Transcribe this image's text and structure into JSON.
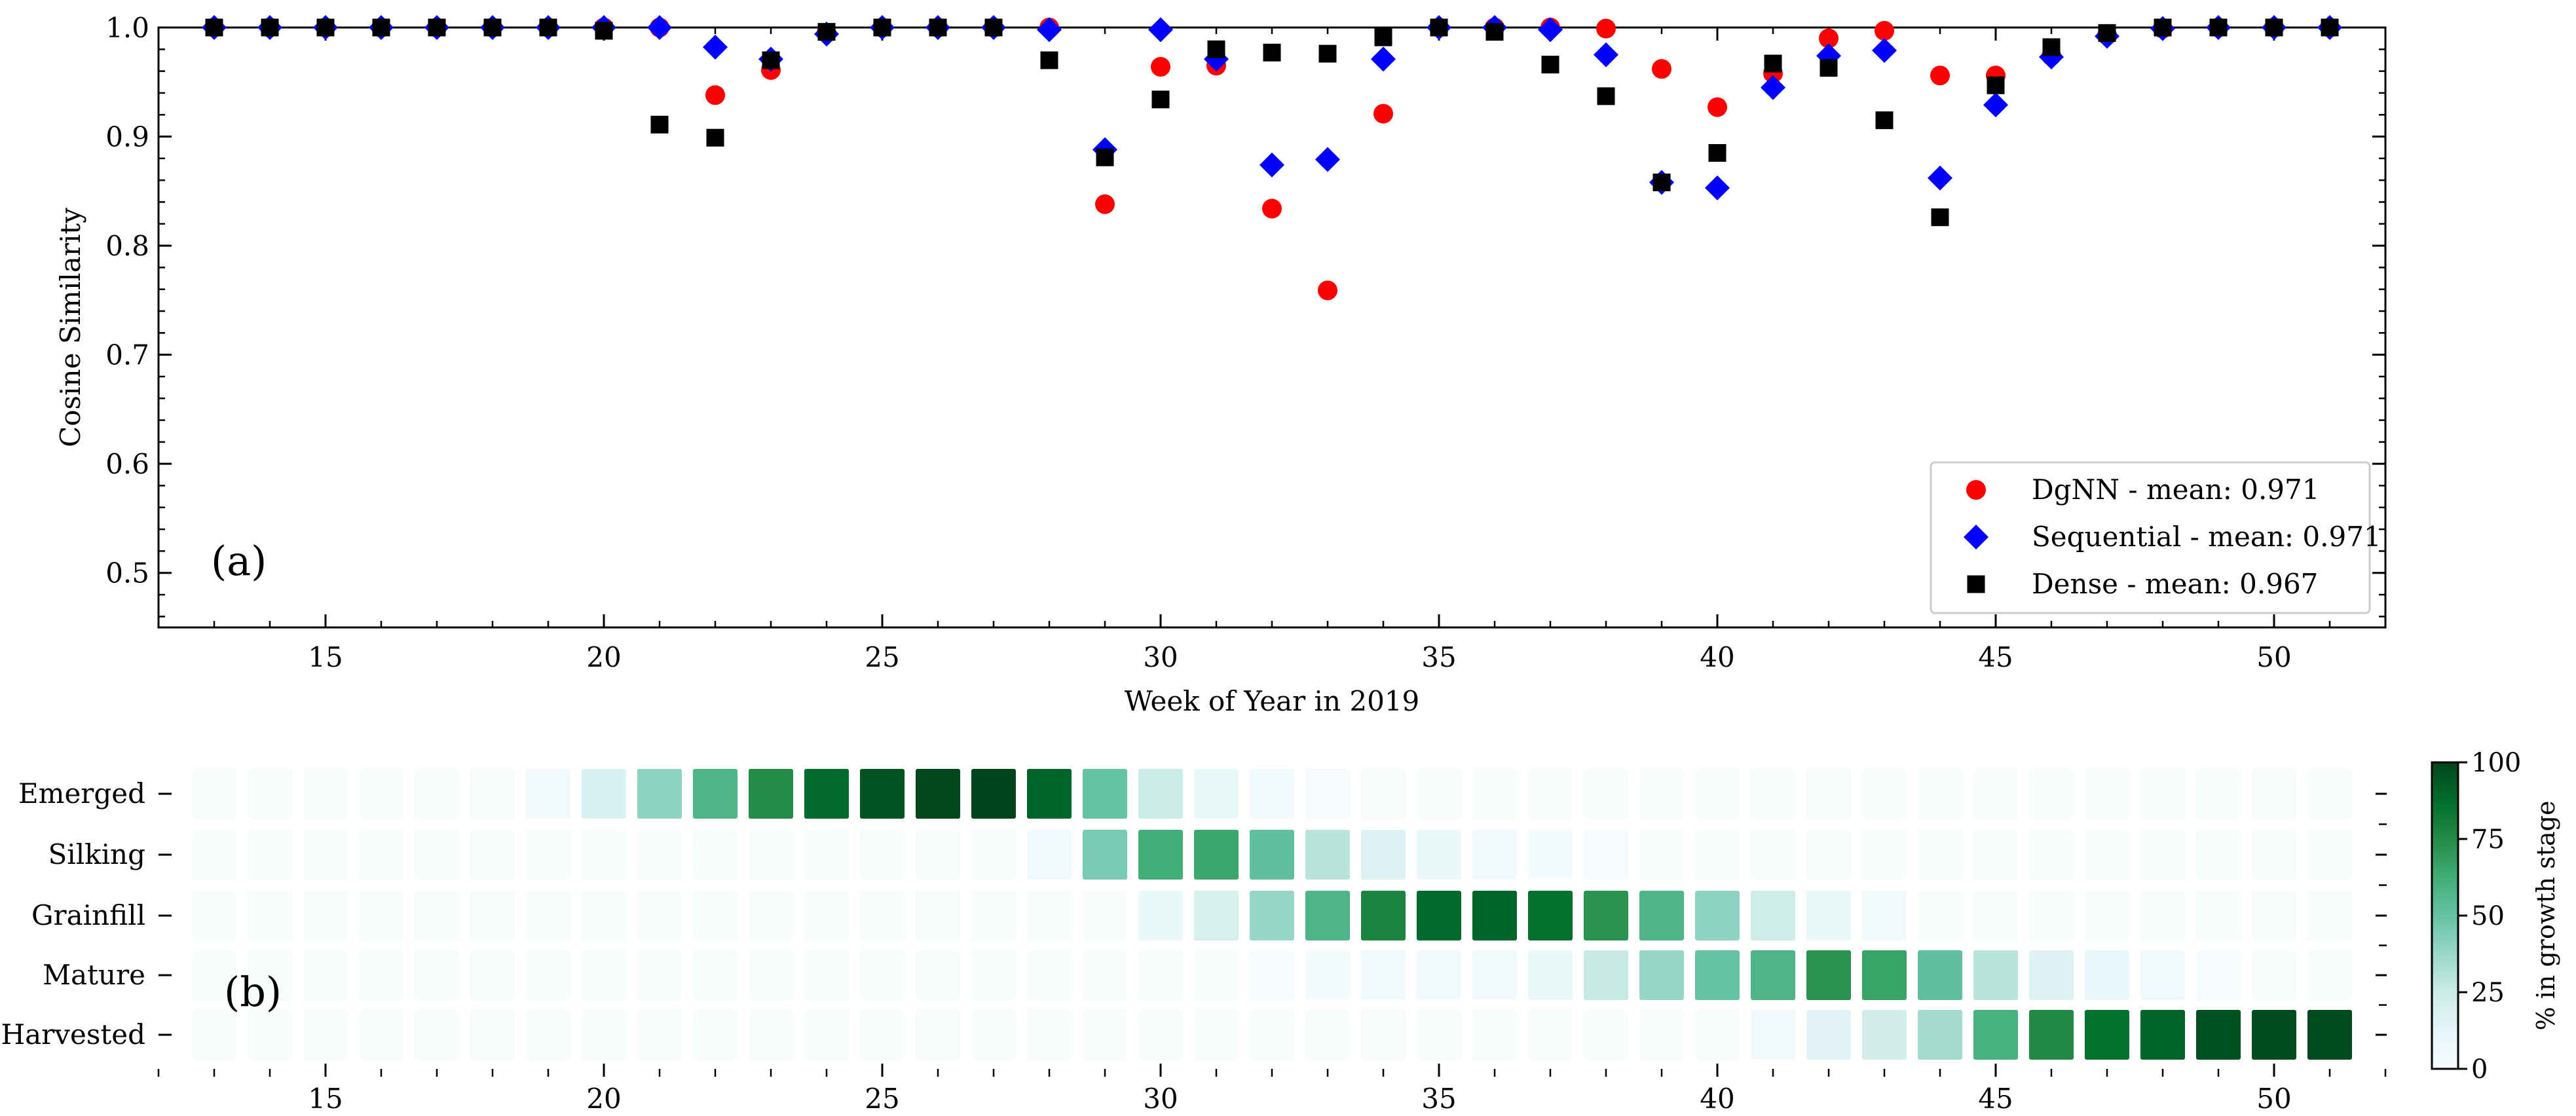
{
  "chart_data": [
    {
      "type": "scatter",
      "panel_label": "(a)",
      "xlabel": "Week of Year in 2019",
      "ylabel": "Cosine Similarity",
      "xlim": [
        12,
        52
      ],
      "ylim": [
        0.45,
        1.0
      ],
      "x_ticks": [
        15,
        20,
        25,
        30,
        35,
        40,
        45,
        50
      ],
      "y_ticks": [
        0.5,
        0.6,
        0.7,
        0.8,
        0.9,
        1.0
      ],
      "x_tick_labels": [
        "15",
        "20",
        "25",
        "30",
        "35",
        "40",
        "45",
        "50"
      ],
      "y_tick_labels": [
        "0.5",
        "0.6",
        "0.7",
        "0.8",
        "0.9",
        "1.0"
      ],
      "legend_position": "lower-right",
      "x": [
        13,
        14,
        15,
        16,
        17,
        18,
        19,
        20,
        21,
        22,
        23,
        24,
        25,
        26,
        27,
        28,
        29,
        30,
        31,
        32,
        33,
        34,
        35,
        36,
        37,
        38,
        39,
        40,
        41,
        42,
        43,
        44,
        45,
        46,
        47,
        48,
        49,
        50,
        51
      ],
      "series": [
        {
          "name": "DgNN",
          "legend_label": "DgNN - mean: 0.971",
          "marker": "circle",
          "color": "#ff0000",
          "values": [
            1.0,
            1.0,
            1.0,
            1.0,
            1.0,
            1.0,
            1.0,
            1.0,
            1.0,
            0.938,
            0.961,
            0.995,
            1.0,
            1.0,
            1.0,
            1.0,
            0.838,
            0.964,
            0.965,
            0.834,
            0.759,
            0.921,
            1.0,
            1.0,
            1.0,
            0.999,
            0.962,
            0.927,
            0.958,
            0.99,
            0.997,
            0.956,
            0.956,
            0.974,
            0.993,
            0.999,
            1.0,
            1.0,
            1.0
          ]
        },
        {
          "name": "Sequential",
          "legend_label": "Sequential - mean: 0.971",
          "marker": "diamond",
          "color": "#0000ff",
          "values": [
            1.0,
            1.0,
            1.0,
            1.0,
            1.0,
            1.0,
            1.0,
            1.0,
            1.0,
            0.982,
            0.971,
            0.994,
            1.0,
            1.0,
            1.0,
            0.998,
            0.888,
            0.998,
            0.971,
            0.874,
            0.879,
            0.971,
            1.0,
            1.0,
            0.998,
            0.975,
            0.858,
            0.853,
            0.945,
            0.974,
            0.979,
            0.862,
            0.929,
            0.973,
            0.992,
            0.999,
            1.0,
            1.0,
            1.0
          ]
        },
        {
          "name": "Dense",
          "legend_label": "Dense - mean: 0.967",
          "marker": "square",
          "color": "#000000",
          "values": [
            1.0,
            1.0,
            1.0,
            1.0,
            1.0,
            1.0,
            1.0,
            0.997,
            0.911,
            0.899,
            0.97,
            0.996,
            1.0,
            1.0,
            1.0,
            0.97,
            0.881,
            0.934,
            0.98,
            0.977,
            0.976,
            0.991,
            1.0,
            0.996,
            0.966,
            0.937,
            0.858,
            0.885,
            0.967,
            0.963,
            0.915,
            0.826,
            0.947,
            0.982,
            0.995,
            1.0,
            1.0,
            1.0,
            1.0
          ]
        }
      ]
    },
    {
      "type": "heatmap",
      "panel_label": "(b)",
      "colorbar_label": "% in growth stage",
      "colorbar_ticks": [
        0,
        25,
        50,
        75,
        100
      ],
      "colorbar_tick_labels": [
        "0",
        "25",
        "50",
        "75",
        "100"
      ],
      "colorbar_range": [
        0,
        100
      ],
      "x_ticks": [
        15,
        20,
        25,
        30,
        35,
        40,
        45,
        50
      ],
      "x_tick_labels": [
        "15",
        "20",
        "25",
        "30",
        "35",
        "40",
        "45",
        "50"
      ],
      "x": [
        13,
        14,
        15,
        16,
        17,
        18,
        19,
        20,
        21,
        22,
        23,
        24,
        25,
        26,
        27,
        28,
        29,
        30,
        31,
        32,
        33,
        34,
        35,
        36,
        37,
        38,
        39,
        40,
        41,
        42,
        43,
        44,
        45,
        46,
        47,
        48,
        49,
        50,
        51
      ],
      "rows": [
        "Emerged",
        "Silking",
        "Grainfill",
        "Mature",
        "Harvested"
      ],
      "values": [
        [
          0,
          0,
          0,
          0,
          0,
          0,
          3,
          18,
          40,
          58,
          75,
          88,
          95,
          99,
          100,
          90,
          50,
          25,
          8,
          4,
          1,
          0,
          0,
          0,
          0,
          0,
          0,
          0,
          0,
          0,
          0,
          0,
          0,
          0,
          0,
          0,
          0,
          0,
          0
        ],
        [
          0,
          0,
          0,
          0,
          0,
          0,
          0,
          0,
          0,
          0,
          0,
          0,
          0,
          0,
          0,
          5,
          45,
          62,
          65,
          52,
          30,
          17,
          8,
          4,
          2,
          1,
          0,
          0,
          0,
          0,
          0,
          0,
          0,
          0,
          0,
          0,
          0,
          0,
          0
        ],
        [
          0,
          0,
          0,
          0,
          0,
          0,
          0,
          0,
          0,
          0,
          0,
          0,
          0,
          0,
          0,
          0,
          0,
          8,
          20,
          38,
          58,
          78,
          88,
          90,
          86,
          72,
          58,
          40,
          24,
          8,
          3,
          0,
          0,
          0,
          0,
          0,
          0,
          0,
          0
        ],
        [
          0,
          0,
          0,
          0,
          0,
          0,
          0,
          0,
          0,
          0,
          0,
          0,
          0,
          0,
          0,
          0,
          0,
          0,
          0,
          1,
          2,
          4,
          4,
          3,
          8,
          26,
          38,
          50,
          58,
          72,
          66,
          52,
          30,
          16,
          10,
          5,
          1,
          0,
          0
        ],
        [
          0,
          0,
          0,
          0,
          0,
          0,
          0,
          0,
          0,
          0,
          0,
          0,
          0,
          0,
          0,
          0,
          0,
          0,
          0,
          0,
          0,
          0,
          0,
          0,
          0,
          0,
          0,
          0,
          3,
          14,
          22,
          35,
          60,
          76,
          86,
          90,
          96,
          98,
          98
        ]
      ]
    }
  ]
}
